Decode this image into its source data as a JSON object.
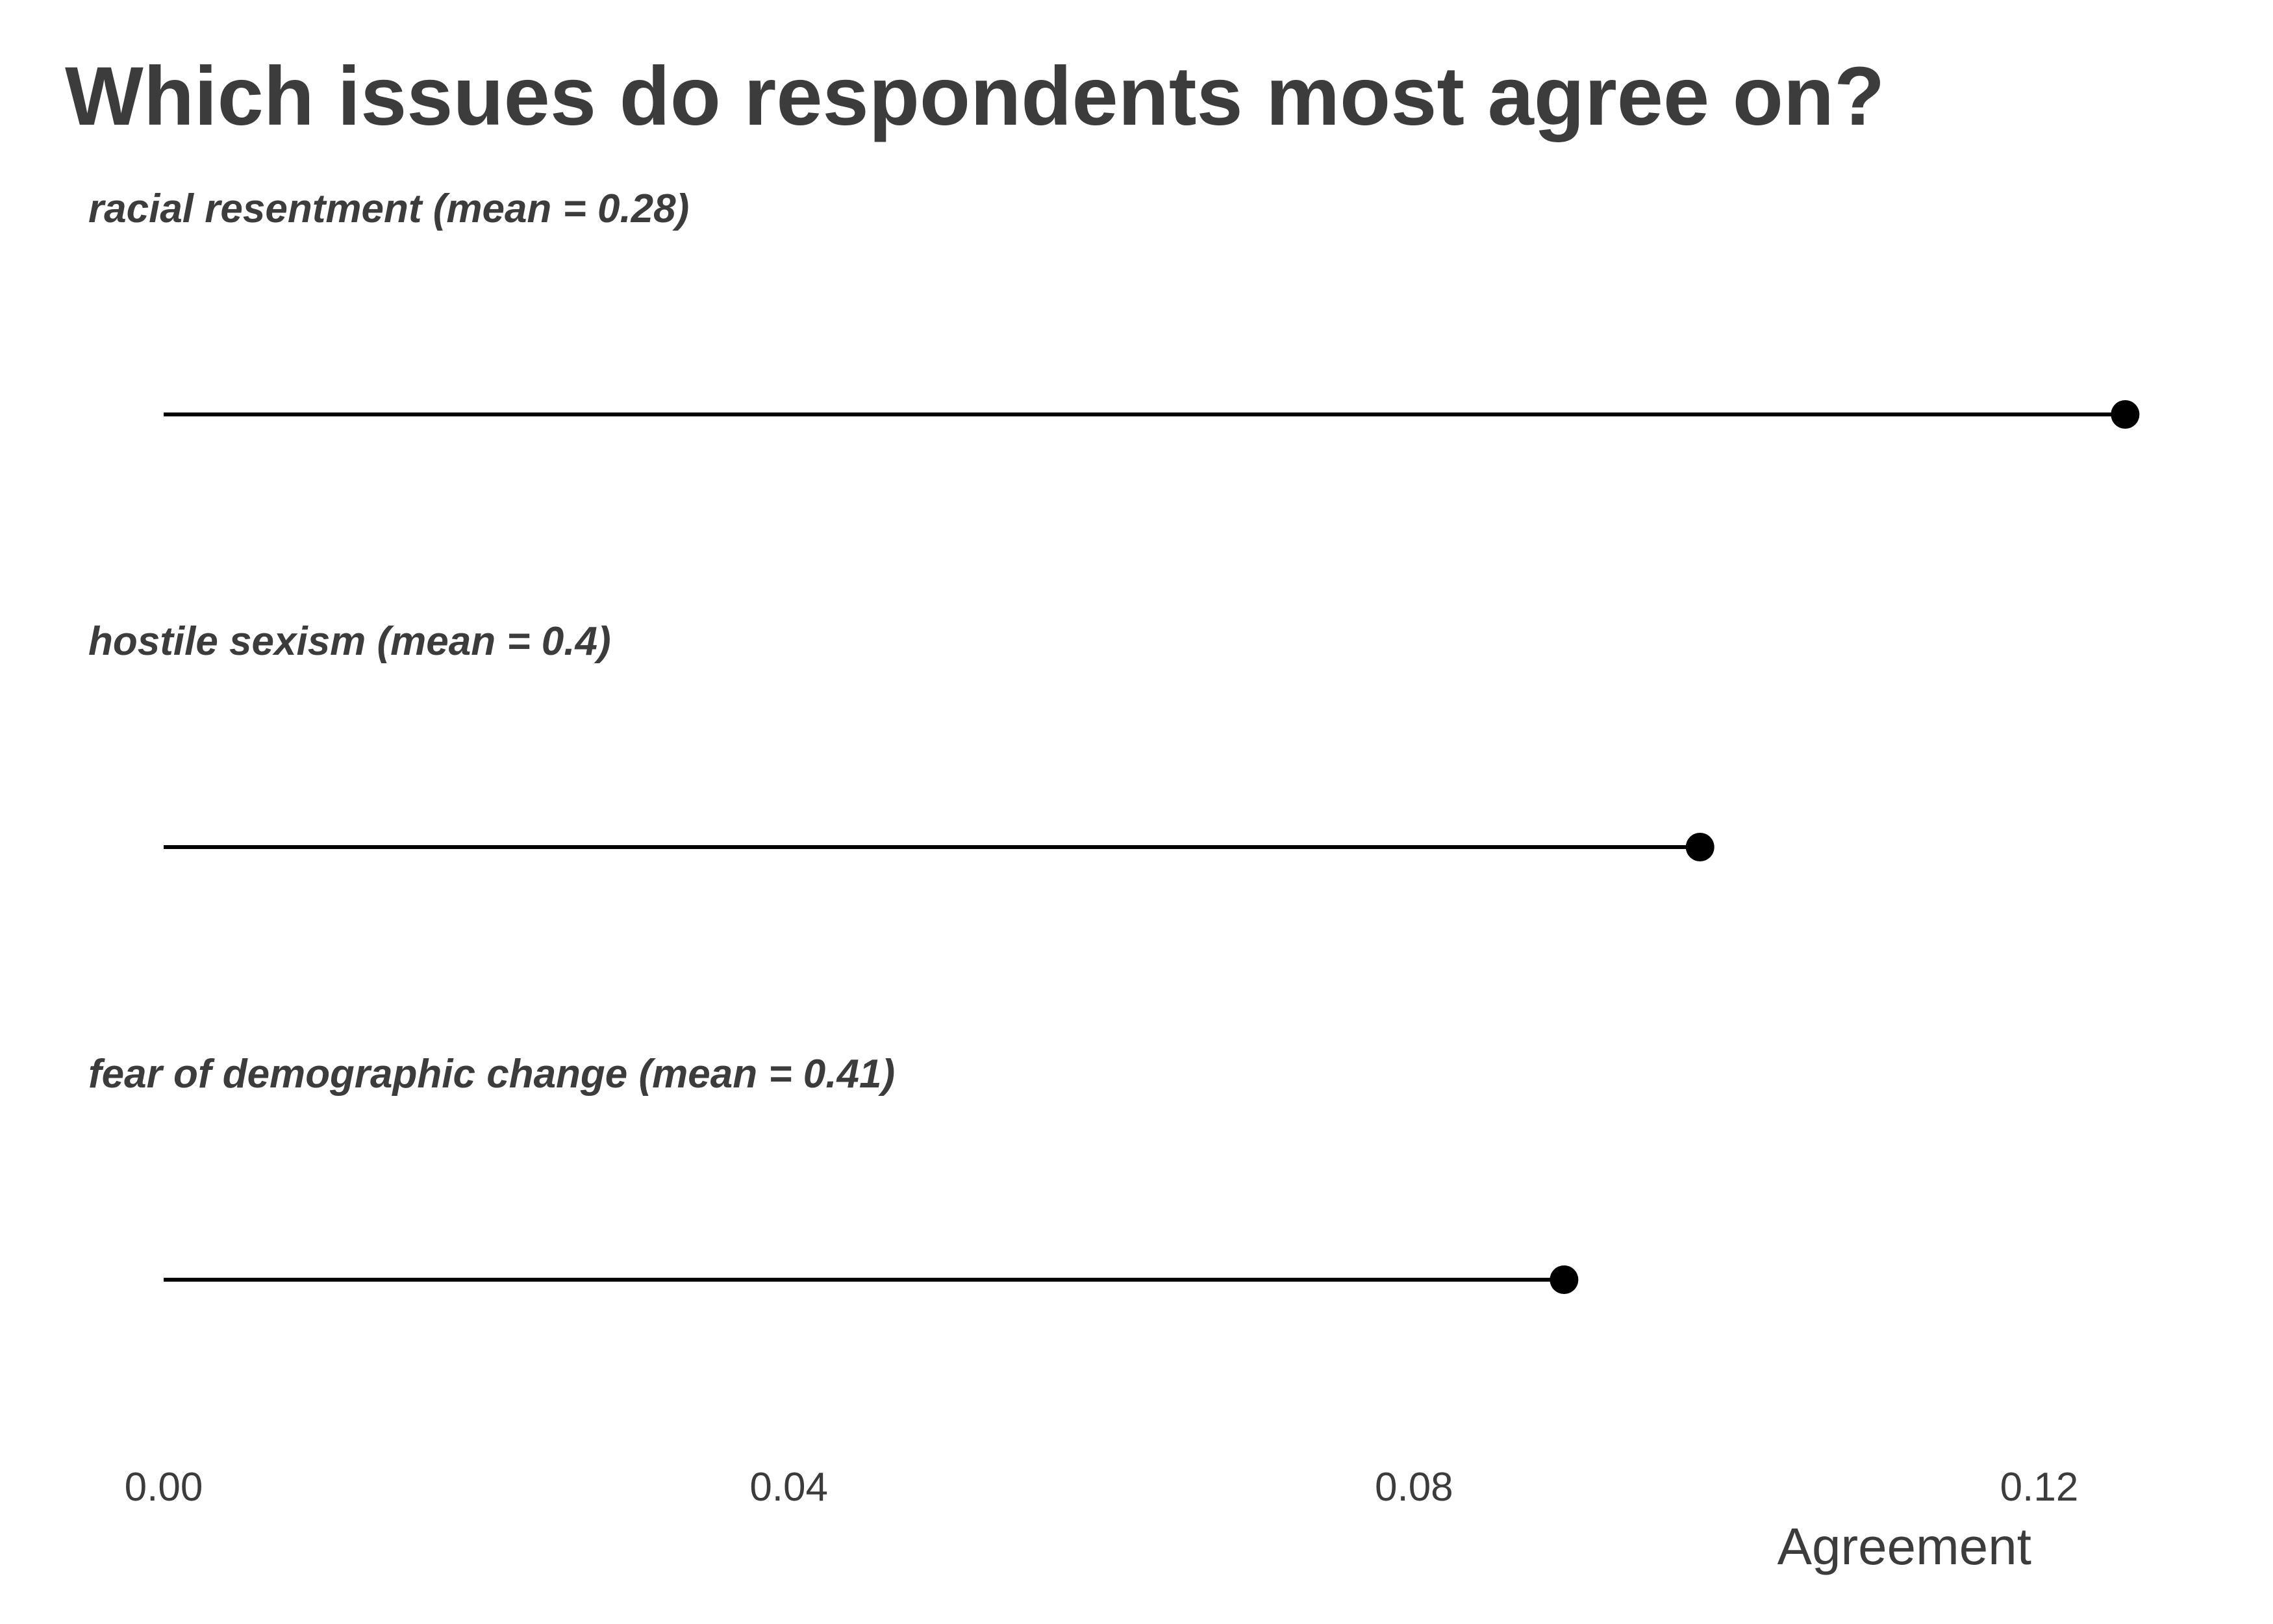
{
  "chart_data": {
    "type": "lollipop",
    "title": "Which issues do respondents most agree on?",
    "xlabel": "Agreement",
    "ylabel": "",
    "xlim": [
      0,
      0.12
    ],
    "x_ticks": [
      "0.00",
      "0.04",
      "0.08",
      "0.12"
    ],
    "x_tick_values": [
      0,
      0.04,
      0.08,
      0.12
    ],
    "grid": false,
    "colors": {
      "text": "#3c3c3c",
      "mark": "#000000"
    },
    "categories": [
      "racial resentment (mean = 0.28)",
      "hostile sexism (mean = 0.4)",
      "fear of demographic change (mean = 0.41)"
    ],
    "values": [
      0.1255,
      0.0983,
      0.0896
    ]
  }
}
